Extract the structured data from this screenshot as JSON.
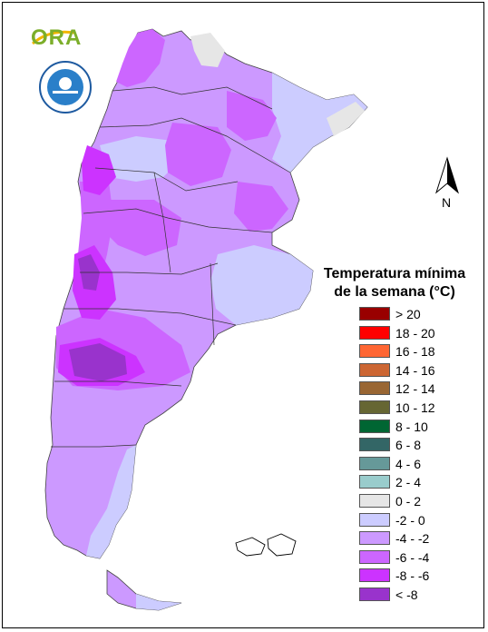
{
  "logo": {
    "text": "ORA"
  },
  "north_arrow": {
    "label": "N"
  },
  "legend": {
    "title_line1": "Temperatura mínima",
    "title_line2": "de la semana (°C)",
    "classes": [
      {
        "label": "> 20",
        "color": "#990000"
      },
      {
        "label": "18 - 20",
        "color": "#ff0000"
      },
      {
        "label": "16 - 18",
        "color": "#ff6633"
      },
      {
        "label": "14 - 16",
        "color": "#cc6633"
      },
      {
        "label": "12 - 14",
        "color": "#996633"
      },
      {
        "label": "10 - 12",
        "color": "#666633"
      },
      {
        "label": "8 - 10",
        "color": "#006633"
      },
      {
        "label": "6 - 8",
        "color": "#336666"
      },
      {
        "label": "4 - 6",
        "color": "#669999"
      },
      {
        "label": "2 - 4",
        "color": "#99cccc"
      },
      {
        "label": "0 - 2",
        "color": "#e6e6e6"
      },
      {
        "label": "-2 - 0",
        "color": "#ccccff"
      },
      {
        "label": "-4 - -2",
        "color": "#cc99ff"
      },
      {
        "label": "-6 - -4",
        "color": "#cc66ff"
      },
      {
        "label": "-8 - -6",
        "color": "#cc33ff"
      },
      {
        "label": "< -8",
        "color": "#9933cc"
      }
    ]
  }
}
